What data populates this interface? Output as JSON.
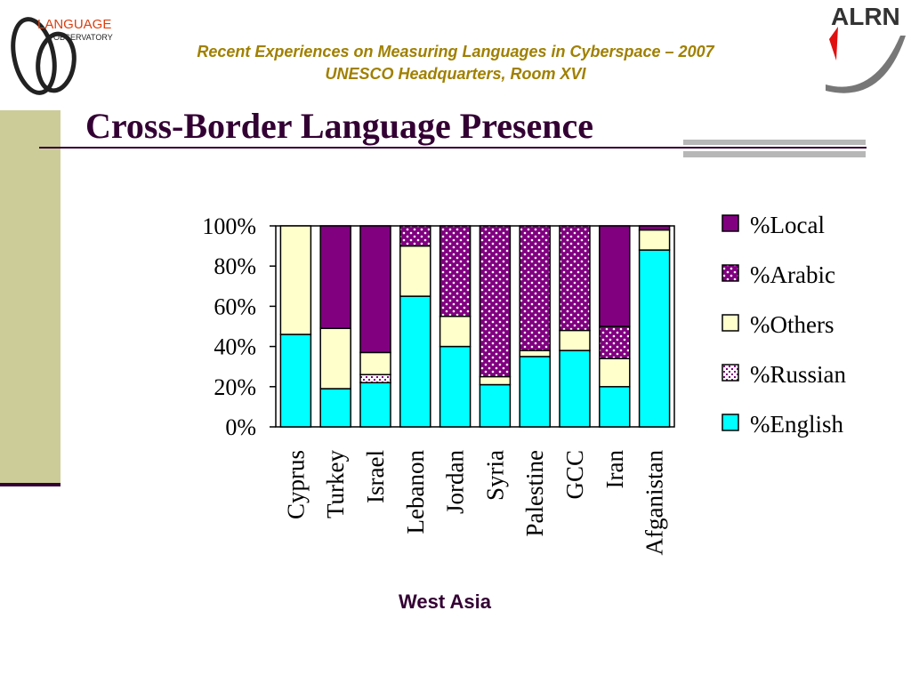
{
  "header": {
    "line1": "Recent Experiences on Measuring Languages in Cyberspace – 2007",
    "line2": "UNESCO Headquarters, Room XVI",
    "logo_left_text1": "LANGUAGE",
    "logo_left_text2": "OBSERVATORY",
    "logo_right_text": "ALRN"
  },
  "title": "Cross-Border Language Presence",
  "region_label": "West Asia",
  "colors": {
    "title": "#330033",
    "header": "#a08000",
    "local": "#800080",
    "arabic": "#800080",
    "others": "#ffffcc",
    "russian": "#ffffff",
    "english": "#00ffff"
  },
  "chart_data": {
    "type": "bar",
    "stacked": true,
    "percent": true,
    "categories": [
      "Cyprus",
      "Turkey",
      "Israel",
      "Lebanon",
      "Jordan",
      "Syria",
      "Palestine",
      "GCC",
      "Iran",
      "Afganistan"
    ],
    "series": [
      {
        "name": "%English",
        "values": [
          46,
          19,
          22,
          65,
          40,
          21,
          35,
          38,
          20,
          88
        ]
      },
      {
        "name": "%Russian",
        "values": [
          0,
          0,
          4,
          0,
          0,
          0,
          0,
          0,
          0,
          0
        ]
      },
      {
        "name": "%Others",
        "values": [
          54,
          30,
          11,
          25,
          15,
          4,
          3,
          10,
          14,
          10
        ]
      },
      {
        "name": "%Arabic",
        "values": [
          0,
          0,
          0,
          10,
          45,
          75,
          62,
          52,
          16,
          0
        ]
      },
      {
        "name": "%Local",
        "values": [
          0,
          51,
          63,
          0,
          0,
          0,
          0,
          0,
          50,
          2
        ]
      }
    ],
    "legend_order": [
      "%Local",
      "%Arabic",
      "%Others",
      "%Russian",
      "%English"
    ],
    "y_ticks": [
      "0%",
      "20%",
      "40%",
      "60%",
      "80%",
      "100%"
    ],
    "ylim": [
      0,
      100
    ],
    "legend_position": "right",
    "grid": false
  }
}
